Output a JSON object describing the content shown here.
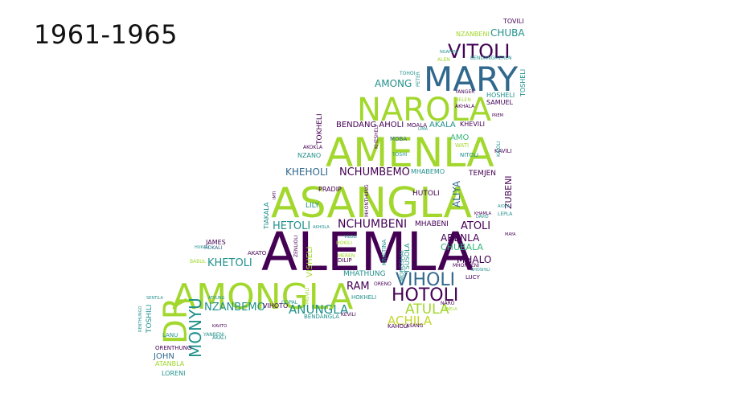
{
  "title": "1961-1965",
  "colors": {
    "dark_purple": "#440154",
    "blue": "#31688e",
    "teal": "#21918c",
    "green": "#35b779",
    "lime": "#a2d72d",
    "yellow_green": "#c4d62b"
  },
  "words": [
    {
      "text": "ALEMLA",
      "color": "dark_purple"
    },
    {
      "text": "ASANGLA",
      "color": "lime"
    },
    {
      "text": "AMENLA",
      "color": "lime"
    },
    {
      "text": "AMONGLA",
      "color": "lime"
    },
    {
      "text": "MARY",
      "color": "blue"
    },
    {
      "text": "NAROLA",
      "color": "lime"
    },
    {
      "text": "DR",
      "color": "lime"
    },
    {
      "text": "VITOLI",
      "color": "dark_purple"
    },
    {
      "text": "VIHOLI",
      "color": "blue"
    },
    {
      "text": "HOTOLI",
      "color": "dark_purple"
    },
    {
      "text": "ATULA",
      "color": "lime"
    },
    {
      "text": "ACHILA",
      "color": "yellow_green"
    },
    {
      "text": "MONYU",
      "color": "teal"
    },
    {
      "text": "ANUNGLA",
      "color": "teal"
    },
    {
      "text": "NZANBEMO",
      "color": "teal"
    },
    {
      "text": "KHETOLI",
      "color": "teal"
    },
    {
      "text": "NCHUMBEMO",
      "color": "dark_purple"
    },
    {
      "text": "KHEHOLI",
      "color": "blue"
    },
    {
      "text": "NCHUMBENI",
      "color": "dark_purple"
    },
    {
      "text": "HETOLI",
      "color": "teal"
    },
    {
      "text": "ATOLI",
      "color": "dark_purple"
    },
    {
      "text": "ARENLA",
      "color": "dark_purple"
    },
    {
      "text": "MHALO",
      "color": "dark_purple"
    },
    {
      "text": "CHUBALA",
      "color": "green"
    },
    {
      "text": "RAM",
      "color": "dark_purple"
    },
    {
      "text": "AMONG",
      "color": "teal"
    },
    {
      "text": "CHUBA",
      "color": "teal"
    },
    {
      "text": "BENDANG AHOLI",
      "color": "dark_purple"
    },
    {
      "text": "AKALA",
      "color": "teal"
    },
    {
      "text": "KHEVILI",
      "color": "dark_purple"
    },
    {
      "text": "AMO",
      "color": "green"
    },
    {
      "text": "ALIYA",
      "color": "blue"
    },
    {
      "text": "ZUBENI",
      "color": "dark_purple"
    },
    {
      "text": "TEMJEN",
      "color": "dark_purple"
    },
    {
      "text": "HUTOLI",
      "color": "dark_purple"
    },
    {
      "text": "MHABENI",
      "color": "dark_purple"
    },
    {
      "text": "MHABEMO",
      "color": "teal"
    },
    {
      "text": "VISHELI",
      "color": "lime"
    },
    {
      "text": "LILY",
      "color": "teal"
    },
    {
      "text": "PRADIP",
      "color": "dark_purple"
    },
    {
      "text": "TOKHELI",
      "color": "dark_purple"
    },
    {
      "text": "NZANO",
      "color": "teal"
    },
    {
      "text": "AKOKLA",
      "color": "dark_purple"
    },
    {
      "text": "TIAKALA",
      "color": "teal"
    },
    {
      "text": "JAMES",
      "color": "dark_purple"
    },
    {
      "text": "AKATO",
      "color": "dark_purple"
    },
    {
      "text": "VIHOTO",
      "color": "dark_purple"
    },
    {
      "text": "JOHN",
      "color": "blue"
    },
    {
      "text": "LORENI",
      "color": "teal"
    },
    {
      "text": "TOSHILI",
      "color": "teal"
    },
    {
      "text": "ORENTHUNG",
      "color": "dark_purple"
    },
    {
      "text": "LANU",
      "color": "teal"
    },
    {
      "text": "MHATHUNG",
      "color": "teal"
    },
    {
      "text": "KAHOLI",
      "color": "dark_purple"
    },
    {
      "text": "LUCY",
      "color": "dark_purple"
    },
    {
      "text": "HOSHELI",
      "color": "teal"
    },
    {
      "text": "SAMUEL",
      "color": "dark_purple"
    },
    {
      "text": "TOSHELI",
      "color": "teal"
    },
    {
      "text": "NZANBENI",
      "color": "lime"
    },
    {
      "text": "TOVILI",
      "color": "dark_purple"
    },
    {
      "text": "HOKHELI",
      "color": "teal"
    },
    {
      "text": "BENDANGLA",
      "color": "teal"
    },
    {
      "text": "DILIP",
      "color": "dark_purple"
    },
    {
      "text": "TSUSOLA",
      "color": "teal"
    },
    {
      "text": "MONGSHAI",
      "color": "teal"
    },
    {
      "text": "KAVILI",
      "color": "dark_purple"
    },
    {
      "text": "NITOLI",
      "color": "teal"
    },
    {
      "text": "MOBA",
      "color": "blue"
    },
    {
      "text": "TOSHI",
      "color": "teal"
    },
    {
      "text": "KHESHELI",
      "color": "dark_purple"
    },
    {
      "text": "WATI",
      "color": "lime"
    },
    {
      "text": "MOALA",
      "color": "dark_purple"
    },
    {
      "text": "LIMA",
      "color": "teal"
    },
    {
      "text": "KRISTINA",
      "color": "teal"
    },
    {
      "text": "ORENO",
      "color": "dark_purple"
    },
    {
      "text": "ASANG",
      "color": "dark_purple"
    },
    {
      "text": "NARO",
      "color": "dark_purple"
    },
    {
      "text": "BABUL",
      "color": "lime"
    },
    {
      "text": "HOKALI",
      "color": "blue"
    },
    {
      "text": "SENTILA",
      "color": "teal"
    },
    {
      "text": "YANBENI",
      "color": "teal"
    },
    {
      "text": "AKALI",
      "color": "teal"
    },
    {
      "text": "ATANBLA",
      "color": "lime"
    },
    {
      "text": "GOPAL",
      "color": "teal"
    },
    {
      "text": "ZENLIOLI",
      "color": "dark_purple"
    },
    {
      "text": "NGAPENI",
      "color": "teal"
    },
    {
      "text": "BENDANGMEREN",
      "color": "teal"
    },
    {
      "text": "YANGER",
      "color": "dark_purple"
    },
    {
      "text": "HELEN",
      "color": "lime"
    },
    {
      "text": "PETER",
      "color": "teal"
    },
    {
      "text": "AKHALA",
      "color": "dark_purple"
    },
    {
      "text": "PREM",
      "color": "dark_purple"
    },
    {
      "text": "KAJOLI",
      "color": "teal"
    },
    {
      "text": "LEPLA",
      "color": "teal"
    },
    {
      "text": "DAVID",
      "color": "teal"
    },
    {
      "text": "MAYA",
      "color": "dark_purple"
    },
    {
      "text": "MHONBENI",
      "color": "dark_purple"
    },
    {
      "text": "IMTI",
      "color": "dark_purple"
    },
    {
      "text": "ALEN",
      "color": "lime"
    },
    {
      "text": "TOHOI",
      "color": "teal"
    },
    {
      "text": "MUVILI",
      "color": "lime"
    },
    {
      "text": "KHAMLA",
      "color": "dark_purple"
    },
    {
      "text": "AIOLA",
      "color": "teal"
    },
    {
      "text": "SHOSHILI",
      "color": "teal"
    },
    {
      "text": "RENTHUNGO",
      "color": "teal"
    },
    {
      "text": "HOKILI",
      "color": "lime"
    },
    {
      "text": "MEREN",
      "color": "lime"
    },
    {
      "text": "VILOLI",
      "color": "teal"
    },
    {
      "text": "AKHOLA",
      "color": "teal"
    },
    {
      "text": "KEVILI",
      "color": "dark_purple"
    },
    {
      "text": "ATSUNG",
      "color": "teal"
    },
    {
      "text": "KAVITO",
      "color": "dark_purple"
    },
    {
      "text": "HUKALI",
      "color": "teal"
    },
    {
      "text": "ANELA",
      "color": "lime"
    },
    {
      "text": "MHONTHUNG",
      "color": "dark_purple"
    }
  ]
}
